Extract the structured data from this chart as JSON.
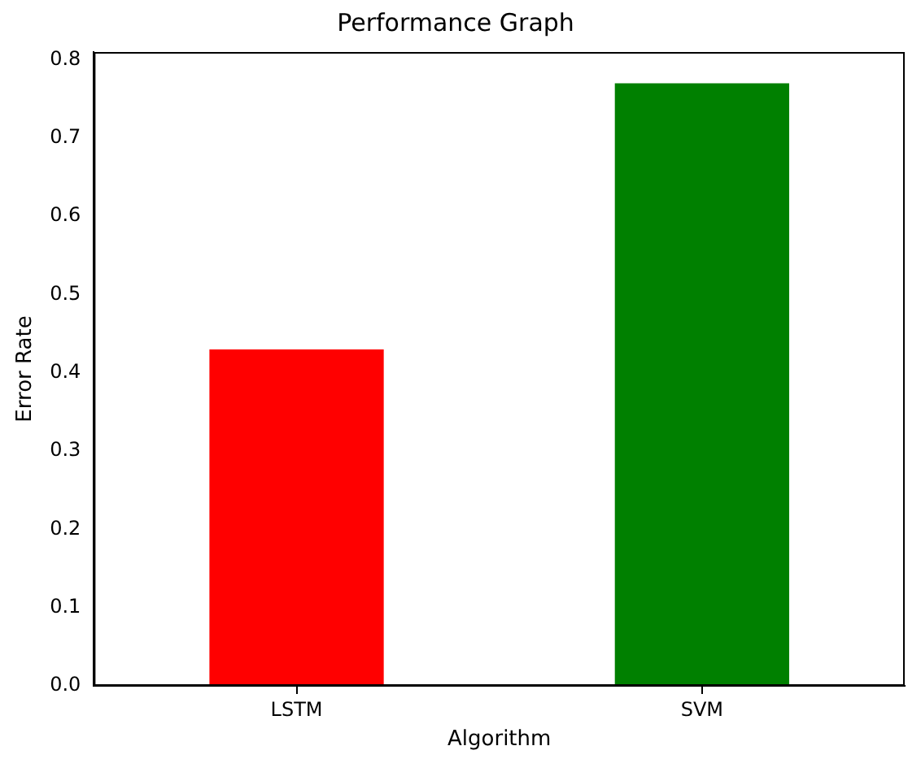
{
  "chart_data": {
    "type": "bar",
    "title": "Performance Graph",
    "xlabel": "Algorithm",
    "ylabel": "Error Rate",
    "categories": [
      "LSTM",
      "SVM"
    ],
    "values": [
      0.43,
      0.77
    ],
    "colors": [
      "#ff0000",
      "#008000"
    ],
    "ylim": [
      0,
      0.81
    ],
    "yticks": [
      {
        "value": 0,
        "label": "0.0"
      },
      0.1,
      0.2,
      0.3,
      0.4,
      0.5,
      0.6,
      0.7,
      0.8
    ],
    "grid": false,
    "legend": false
  }
}
